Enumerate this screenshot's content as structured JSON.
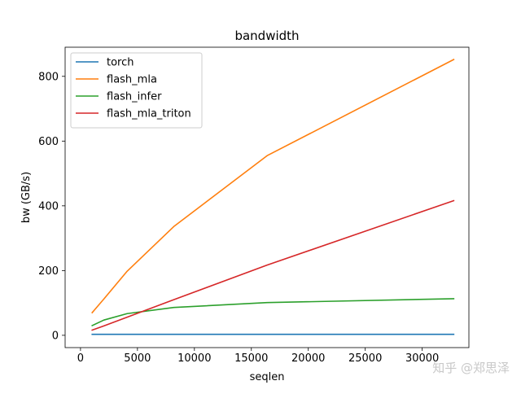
{
  "chart_data": {
    "type": "line",
    "title": "bandwidth",
    "xlabel": "seqlen",
    "ylabel": "bw (GB/s)",
    "xlim": [
      -1350,
      34100
    ],
    "ylim": [
      -38,
      890
    ],
    "xticks": [
      0,
      5000,
      10000,
      15000,
      20000,
      25000,
      30000
    ],
    "xtick_labels": [
      "0",
      "5000",
      "10000",
      "15000",
      "20000",
      "25000",
      "30000"
    ],
    "yticks": [
      0,
      200,
      400,
      600,
      800
    ],
    "ytick_labels": [
      "0",
      "200",
      "400",
      "600",
      "800"
    ],
    "grid": false,
    "legend_position": "top-left",
    "series": [
      {
        "name": "torch",
        "color": "#1f77b4",
        "x": [
          1024,
          2048,
          4096,
          8192,
          16384,
          32768
        ],
        "y": [
          3,
          3,
          3,
          3,
          3,
          3
        ]
      },
      {
        "name": "flash_mla",
        "color": "#ff7f0e",
        "x": [
          1024,
          2048,
          4096,
          8192,
          16384,
          32768
        ],
        "y": [
          70,
          112,
          198,
          336,
          555,
          852
        ]
      },
      {
        "name": "flash_infer",
        "color": "#2ca02c",
        "x": [
          1024,
          2048,
          4096,
          8192,
          16384,
          32768
        ],
        "y": [
          30,
          47,
          67,
          86,
          101,
          113
        ]
      },
      {
        "name": "flash_mla_triton",
        "color": "#d62728",
        "x": [
          1024,
          2048,
          4096,
          8192,
          16384,
          32768
        ],
        "y": [
          16,
          29,
          56,
          110,
          217,
          416
        ]
      }
    ]
  },
  "watermark": "知乎 @郑思泽"
}
